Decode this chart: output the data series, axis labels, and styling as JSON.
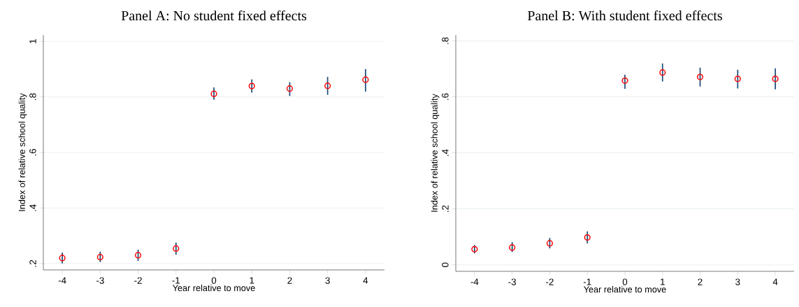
{
  "chart_data": [
    {
      "type": "scatter",
      "title": "Panel A: No student fixed effects",
      "xlabel": "Year relative to move",
      "ylabel": "Index of relative school quality",
      "x": [
        -4,
        -3,
        -2,
        -1,
        0,
        1,
        2,
        3,
        4
      ],
      "xlim": [
        -4.5,
        4.5
      ],
      "xticks": [
        -4,
        -3,
        -2,
        -1,
        0,
        1,
        2,
        3,
        4
      ],
      "ylim": [
        0.177,
        1.023
      ],
      "yticks": [
        {
          "value": 0.2,
          "label": ".2"
        },
        {
          "value": 0.4,
          "label": ".4"
        },
        {
          "value": 0.6,
          "label": ".6"
        },
        {
          "value": 0.8,
          "label": ".8"
        },
        1
      ],
      "grid": "y",
      "marker": "circle",
      "series": [
        {
          "color": "#ff0000",
          "values": [
            0.22,
            0.223,
            0.23,
            0.254,
            0.811,
            0.839,
            0.83,
            0.84,
            0.862
          ],
          "errors": [
            [
              0.2,
              0.239
            ],
            [
              0.205,
              0.243
            ],
            [
              0.21,
              0.25
            ],
            [
              0.232,
              0.275
            ],
            [
              0.79,
              0.834
            ],
            [
              0.815,
              0.863
            ],
            [
              0.803,
              0.853
            ],
            [
              0.808,
              0.872
            ],
            [
              0.819,
              0.9
            ]
          ]
        }
      ]
    },
    {
      "type": "scatter",
      "title": "Panel B: With student fixed effects",
      "xlabel": "Year relative to move",
      "ylabel": "Index of relative school quality",
      "x": [
        -4,
        -3,
        -2,
        -1,
        0,
        1,
        2,
        3,
        4
      ],
      "xlim": [
        -4.5,
        4.5
      ],
      "xticks": [
        -4,
        -3,
        -2,
        -1,
        0,
        1,
        2,
        3,
        4
      ],
      "ylim": [
        -0.023,
        0.821
      ],
      "yticks": [
        0,
        {
          "value": 0.2,
          "label": ".2"
        },
        {
          "value": 0.4,
          "label": ".4"
        },
        {
          "value": 0.6,
          "label": ".6"
        },
        {
          "value": 0.8,
          "label": ".8"
        }
      ],
      "grid": "y",
      "marker": "circle",
      "series": [
        {
          "color": "#ff0000",
          "values": [
            0.056,
            0.062,
            0.077,
            0.098,
            0.658,
            0.687,
            0.671,
            0.664,
            0.664
          ],
          "errors": [
            [
              0.041,
              0.071
            ],
            [
              0.046,
              0.081
            ],
            [
              0.059,
              0.096
            ],
            [
              0.077,
              0.12
            ],
            [
              0.629,
              0.679
            ],
            [
              0.655,
              0.719
            ],
            [
              0.637,
              0.704
            ],
            [
              0.63,
              0.697
            ],
            [
              0.627,
              0.702
            ]
          ]
        }
      ]
    }
  ]
}
